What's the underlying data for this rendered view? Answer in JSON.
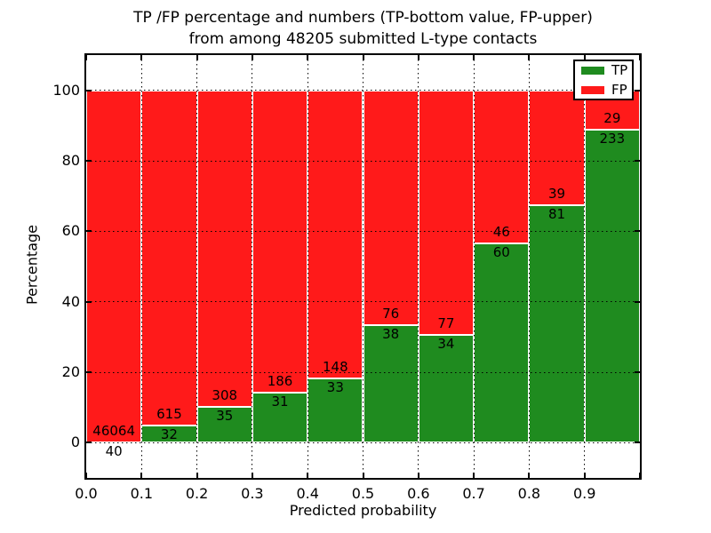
{
  "chart_data": {
    "type": "bar",
    "stacked": true,
    "normalized": "percent",
    "title_line1": "TP /FP percentage and numbers (TP-bottom value, FP-upper)",
    "title_line2": "from among 48205 submitted L-type contacts",
    "xlabel": "Predicted probability",
    "ylabel": "Percentage",
    "bin_edges": [
      0.0,
      0.1,
      0.2,
      0.3,
      0.4,
      0.5,
      0.6,
      0.7,
      0.8,
      0.9,
      1.0
    ],
    "series": [
      {
        "name": "TP",
        "color": "#1f8b1f",
        "values": [
          40,
          32,
          35,
          31,
          33,
          38,
          34,
          60,
          81,
          233
        ]
      },
      {
        "name": "FP",
        "color": "#ff1a1a",
        "values": [
          46064,
          615,
          308,
          186,
          148,
          76,
          77,
          46,
          39,
          29
        ]
      }
    ],
    "bar_edge_color": "#ffffff",
    "label_color": "#000000",
    "xticks": [
      "0.0",
      "0.1",
      "0.2",
      "0.3",
      "0.4",
      "0.5",
      "0.6",
      "0.7",
      "0.8",
      "0.9"
    ],
    "yticks": [
      "0",
      "20",
      "40",
      "60",
      "80",
      "100"
    ],
    "xlim": [
      0.0,
      1.0
    ],
    "ylim": [
      -10,
      110
    ],
    "grid": "dotted",
    "legend": {
      "position": "upper right",
      "entries": [
        {
          "label": "TP",
          "color": "#1f8b1f"
        },
        {
          "label": "FP",
          "color": "#ff1a1a"
        }
      ]
    }
  }
}
